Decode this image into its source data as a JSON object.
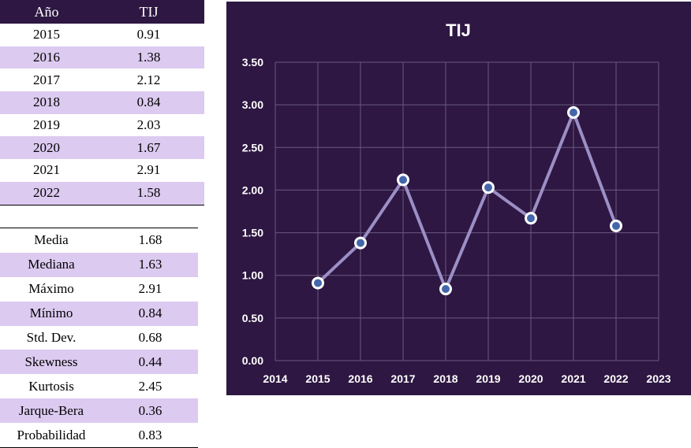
{
  "year_table": {
    "headers": [
      "Año",
      "TIJ"
    ],
    "rows": [
      [
        "2015",
        "0.91"
      ],
      [
        "2016",
        "1.38"
      ],
      [
        "2017",
        "2.12"
      ],
      [
        "2018",
        "0.84"
      ],
      [
        "2019",
        "2.03"
      ],
      [
        "2020",
        "1.67"
      ],
      [
        "2021",
        "2.91"
      ],
      [
        "2022",
        "1.58"
      ]
    ]
  },
  "stats_table": {
    "rows": [
      [
        "Media",
        "1.68"
      ],
      [
        "Mediana",
        "1.63"
      ],
      [
        "Máximo",
        "2.91"
      ],
      [
        "Mínimo",
        "0.84"
      ],
      [
        "Std. Dev.",
        "0.68"
      ],
      [
        "Skewness",
        "0.44"
      ],
      [
        "Kurtosis",
        "2.45"
      ],
      [
        "Jarque-Bera",
        "0.36"
      ],
      [
        "Probabilidad",
        "0.83"
      ]
    ]
  },
  "colors": {
    "panel_bg": "#2e1742",
    "row_stripe": "#dccaf0",
    "line": "#9b8fc6",
    "marker_fill": "#4466aa",
    "marker_stroke": "#ffffff",
    "grid": "#6a5a80"
  },
  "chart_data": {
    "type": "line",
    "title": "TIJ",
    "x": [
      2015,
      2016,
      2017,
      2018,
      2019,
      2020,
      2021,
      2022
    ],
    "series": [
      {
        "values": [
          0.91,
          1.38,
          2.12,
          0.84,
          2.03,
          1.67,
          2.91,
          1.58
        ]
      }
    ],
    "xlim": [
      2014,
      2023
    ],
    "x_ticks": [
      "2014",
      "2015",
      "2016",
      "2017",
      "2018",
      "2019",
      "2020",
      "2021",
      "2022",
      "2023"
    ],
    "ylim": [
      0,
      3.5
    ],
    "y_ticks": [
      "0.00",
      "0.50",
      "1.00",
      "1.50",
      "2.00",
      "2.50",
      "3.00",
      "3.50"
    ],
    "grid": true,
    "legend": "none"
  }
}
